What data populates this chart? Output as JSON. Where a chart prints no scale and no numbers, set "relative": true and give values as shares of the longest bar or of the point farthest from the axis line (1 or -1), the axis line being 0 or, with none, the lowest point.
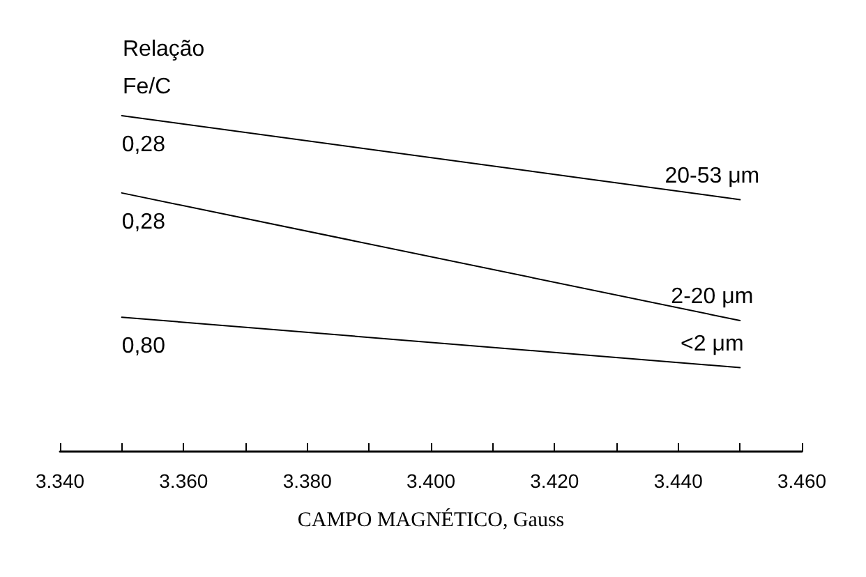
{
  "chart_data": {
    "type": "line",
    "relative": true,
    "xlabel": "CAMPO MAGNÉTICO, Gauss",
    "ylabel": "Relação\nFe/C",
    "xlim": [
      3340,
      3460
    ],
    "xticks": [
      {
        "value": 3340,
        "label": "3.340"
      },
      {
        "value": 3350,
        "label": null
      },
      {
        "value": 3360,
        "label": "3.360"
      },
      {
        "value": 3370,
        "label": null
      },
      {
        "value": 3380,
        "label": "3.380"
      },
      {
        "value": 3390,
        "label": null
      },
      {
        "value": 3400,
        "label": "3.400"
      },
      {
        "value": 3410,
        "label": null
      },
      {
        "value": 3420,
        "label": "3.420"
      },
      {
        "value": 3430,
        "label": null
      },
      {
        "value": 3440,
        "label": "3.440"
      },
      {
        "value": 3450,
        "label": null
      },
      {
        "value": 3460,
        "label": "3.460"
      }
    ],
    "x": [
      3350,
      3450
    ],
    "series": [
      {
        "name": "20-53 μm",
        "color": "#000000",
        "values": [
          1,
          0.75
        ]
      },
      {
        "name": "2-20 μm",
        "color": "#000000",
        "values": [
          0.77,
          0.39
        ]
      },
      {
        "name": "<2 μm",
        "color": "#000000",
        "values": [
          0.4,
          0.25
        ]
      }
    ],
    "annotations": [
      "0,28",
      "0,28",
      "0,80"
    ],
    "legend": false,
    "grid": false,
    "marker": "none",
    "line_style": "solid"
  }
}
